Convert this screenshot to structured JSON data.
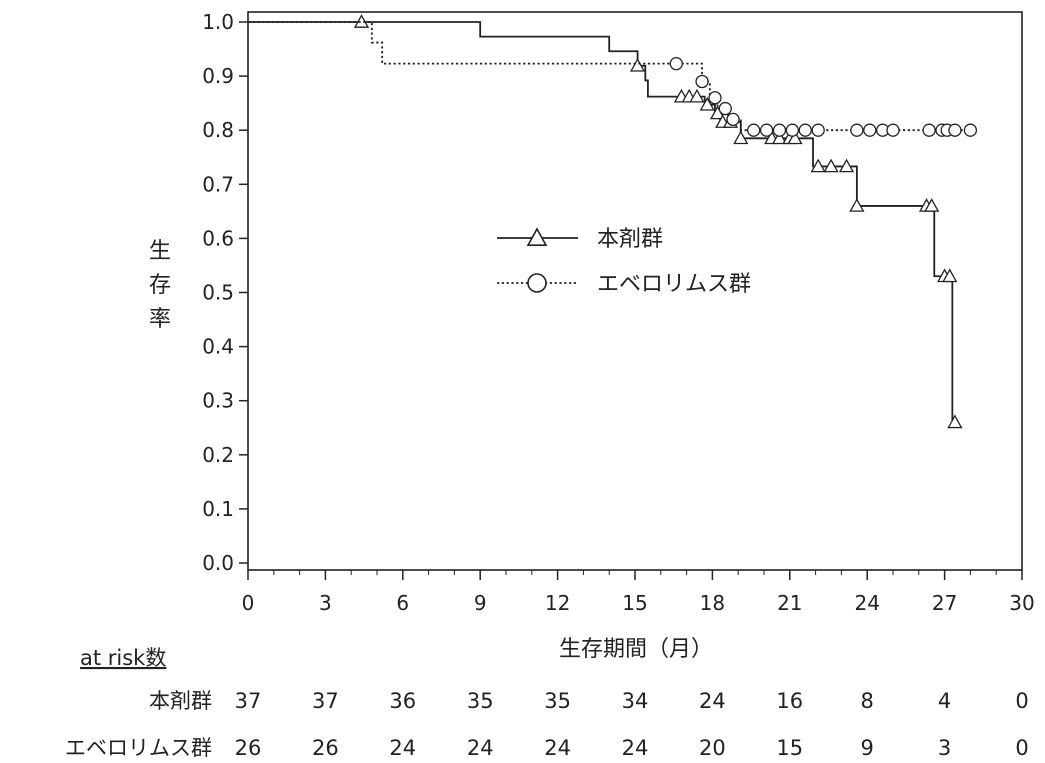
{
  "chart_data": {
    "type": "line",
    "title": "",
    "xlabel": "生存期間（月）",
    "ylabel": "生存率",
    "xlim": [
      0,
      30
    ],
    "ylim": [
      0.0,
      1.0
    ],
    "x_ticks": [
      "0",
      "3",
      "6",
      "9",
      "12",
      "15",
      "18",
      "21",
      "24",
      "27",
      "30"
    ],
    "y_ticks": [
      "0.0",
      "0.1",
      "0.2",
      "0.3",
      "0.4",
      "0.5",
      "0.6",
      "0.7",
      "0.8",
      "0.9",
      "1.0"
    ],
    "grid": false,
    "legend_position": "center-right",
    "series": [
      {
        "name": "本剤群",
        "line_style": "solid",
        "marker": "triangle",
        "steps": [
          [
            0,
            1.0
          ],
          [
            9,
            0.973
          ],
          [
            14,
            0.946
          ],
          [
            15.1,
            0.919
          ],
          [
            15.4,
            0.892
          ],
          [
            15.5,
            0.862
          ],
          [
            17.2,
            0.862
          ],
          [
            17.7,
            0.847
          ],
          [
            18.1,
            0.831
          ],
          [
            18.3,
            0.815
          ],
          [
            19.1,
            0.785
          ],
          [
            21.9,
            0.733
          ],
          [
            23.6,
            0.66
          ],
          [
            26.6,
            0.53
          ],
          [
            27.3,
            0.26
          ]
        ],
        "censored": [
          [
            4.4,
            1.0
          ],
          [
            15.1,
            0.919
          ],
          [
            16.8,
            0.862
          ],
          [
            17.1,
            0.862
          ],
          [
            17.4,
            0.862
          ],
          [
            17.8,
            0.847
          ],
          [
            18.2,
            0.831
          ],
          [
            18.4,
            0.815
          ],
          [
            18.7,
            0.815
          ],
          [
            19.1,
            0.785
          ],
          [
            20.3,
            0.785
          ],
          [
            20.6,
            0.785
          ],
          [
            21.0,
            0.785
          ],
          [
            21.2,
            0.785
          ],
          [
            22.1,
            0.733
          ],
          [
            22.6,
            0.733
          ],
          [
            23.2,
            0.733
          ],
          [
            23.6,
            0.66
          ],
          [
            26.3,
            0.66
          ],
          [
            26.5,
            0.66
          ],
          [
            27.0,
            0.53
          ],
          [
            27.2,
            0.53
          ],
          [
            27.4,
            0.26
          ]
        ]
      },
      {
        "name": "エベロリムス群",
        "line_style": "dotted",
        "marker": "circle",
        "steps": [
          [
            0,
            1.0
          ],
          [
            4.8,
            0.962
          ],
          [
            5.2,
            0.923
          ],
          [
            17.6,
            0.89
          ],
          [
            17.9,
            0.86
          ],
          [
            18.2,
            0.84
          ],
          [
            18.6,
            0.82
          ],
          [
            19.1,
            0.8
          ],
          [
            28.0,
            0.8
          ]
        ],
        "censored": [
          [
            16.6,
            0.923
          ],
          [
            17.6,
            0.89
          ],
          [
            18.1,
            0.86
          ],
          [
            18.5,
            0.84
          ],
          [
            18.8,
            0.82
          ],
          [
            19.6,
            0.8
          ],
          [
            20.1,
            0.8
          ],
          [
            20.6,
            0.8
          ],
          [
            21.1,
            0.8
          ],
          [
            21.6,
            0.8
          ],
          [
            22.1,
            0.8
          ],
          [
            23.6,
            0.8
          ],
          [
            24.1,
            0.8
          ],
          [
            24.6,
            0.8
          ],
          [
            25.0,
            0.8
          ],
          [
            26.4,
            0.8
          ],
          [
            26.9,
            0.8
          ],
          [
            27.1,
            0.8
          ],
          [
            27.4,
            0.8
          ],
          [
            28.0,
            0.8
          ]
        ]
      }
    ],
    "at_risk": {
      "header": "at risk数",
      "rows": [
        {
          "label": "本剤群",
          "values": [
            "37",
            "37",
            "36",
            "35",
            "35",
            "34",
            "24",
            "16",
            "8",
            "4",
            "0"
          ]
        },
        {
          "label": "エベロリムス群",
          "values": [
            "26",
            "26",
            "24",
            "24",
            "24",
            "24",
            "20",
            "15",
            "9",
            "3",
            "0"
          ]
        }
      ]
    }
  }
}
